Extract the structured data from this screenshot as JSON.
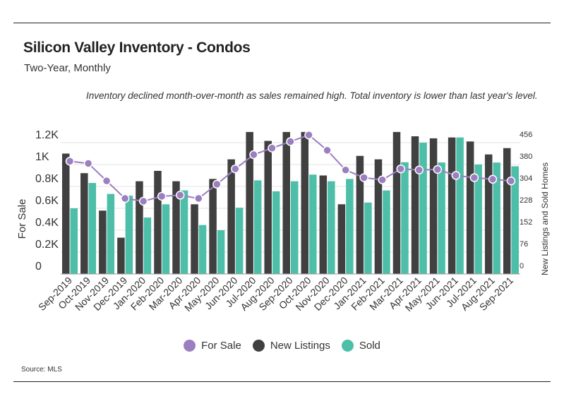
{
  "header": {
    "title": "Silicon Valley Inventory - Condos",
    "subtitle": "Two-Year, Monthly",
    "annotation": "Inventory declined month-over-month as sales remained high. Total inventory is lower than last year's level."
  },
  "source": "Source:  MLS",
  "chart_data": {
    "type": "bar",
    "categories": [
      "Sep-2019",
      "Oct-2019",
      "Nov-2019",
      "Dec-2019",
      "Jan-2020",
      "Feb-2020",
      "Mar-2020",
      "Apr-2020",
      "May-2020",
      "Jun-2020",
      "Jul-2020",
      "Aug-2020",
      "Sep-2020",
      "Oct-2020",
      "Nov-2020",
      "Dec-2020",
      "Jan-2021",
      "Feb-2021",
      "Mar-2021",
      "Apr-2021",
      "May-2021",
      "Jun-2021",
      "Jul-2021",
      "Aug-2021",
      "Sep-2021"
    ],
    "left_axis": {
      "label": "For Sale",
      "ticks": [
        "0",
        "0.2K",
        "0.4K",
        "0.6K",
        "0.8K",
        "1K",
        "1.2K"
      ],
      "ylim": [
        0,
        1200
      ]
    },
    "right_axis": {
      "label": "New Listings and Sold Homes",
      "ticks": [
        "0",
        "76",
        "152",
        "228",
        "304",
        "380",
        "456"
      ],
      "ylim": [
        0,
        456
      ]
    },
    "series": [
      {
        "name": "New Listings",
        "type": "bar",
        "axis": "right",
        "color": "#404040",
        "values": [
          418,
          350,
          220,
          126,
          322,
          358,
          322,
          242,
          330,
          398,
          493,
          462,
          493,
          493,
          342,
          242,
          410,
          398,
          493,
          478,
          471,
          474,
          460,
          415,
          437
        ]
      },
      {
        "name": "Sold",
        "type": "bar",
        "axis": "right",
        "color": "#4dbfa9",
        "values": [
          228,
          316,
          278,
          272,
          196,
          242,
          290,
          170,
          152,
          230,
          325,
          287,
          322,
          345,
          322,
          330,
          248,
          290,
          388,
          456,
          387,
          474,
          380,
          387,
          374
        ]
      },
      {
        "name": "For Sale",
        "type": "line",
        "axis": "left",
        "color": "#9b7fc0",
        "values": [
          1030,
          1010,
          850,
          690,
          665,
          710,
          720,
          690,
          820,
          960,
          1090,
          1150,
          1210,
          1270,
          1130,
          950,
          880,
          860,
          960,
          950,
          955,
          900,
          880,
          865,
          850
        ]
      }
    ],
    "legend": {
      "position": "bottom",
      "items": [
        "For Sale",
        "New Listings",
        "Sold"
      ]
    }
  }
}
